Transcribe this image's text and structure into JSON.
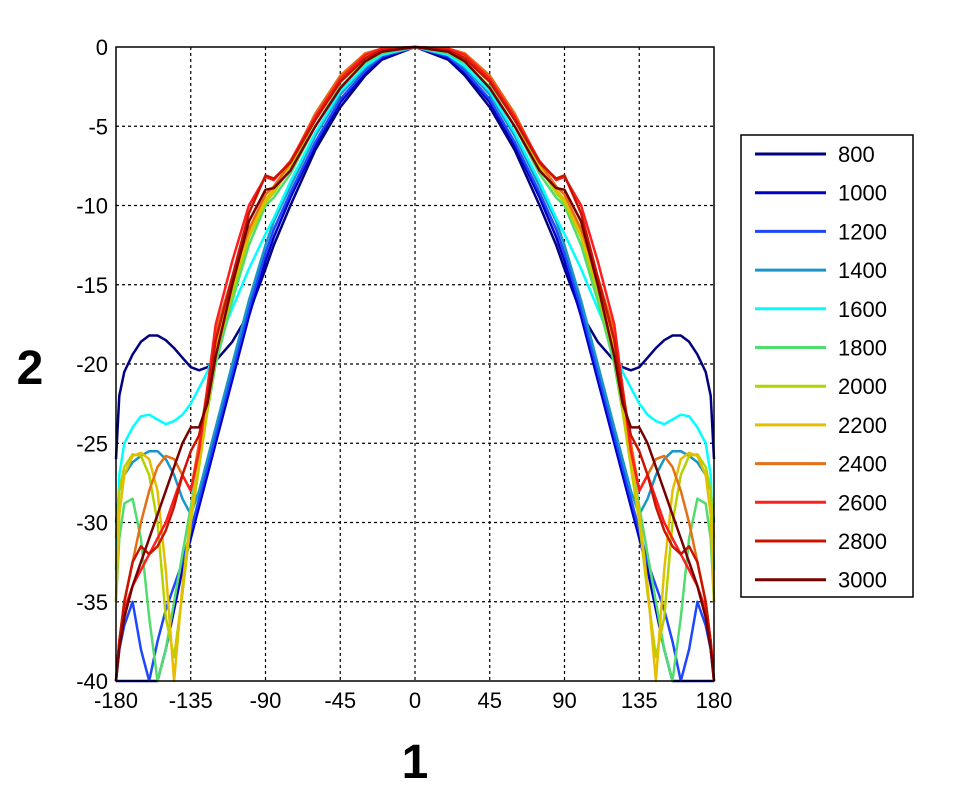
{
  "chart_data": {
    "type": "line",
    "title": "",
    "xlabel": "1",
    "ylabel": "2",
    "xlim": [
      -180,
      180
    ],
    "ylim": [
      -40,
      0
    ],
    "xticks": [
      -180,
      -135,
      -90,
      -45,
      0,
      45,
      90,
      135,
      180
    ],
    "yticks": [
      0,
      -5,
      -10,
      -15,
      -20,
      -25,
      -30,
      -35,
      -40
    ],
    "grid": true,
    "legend_position": "right",
    "x": [
      0,
      20,
      30,
      45,
      60,
      75,
      85,
      90,
      100,
      110,
      120,
      125,
      130,
      135,
      140,
      145,
      150,
      155,
      160,
      165,
      170,
      175,
      178,
      180
    ],
    "series": [
      {
        "name": "800",
        "color": "#000080",
        "values": [
          0,
          -0.8,
          -1.8,
          -3.8,
          -6.5,
          -10.0,
          -12.5,
          -14.0,
          -16.8,
          -18.6,
          -19.8,
          -20.2,
          -20.4,
          -20.2,
          -19.6,
          -19.0,
          -18.5,
          -18.2,
          -18.2,
          -18.6,
          -19.4,
          -20.5,
          -22.0,
          -26.0
        ]
      },
      {
        "name": "1000",
        "color": "#0000c8",
        "values": [
          0,
          -0.7,
          -1.6,
          -3.5,
          -6.2,
          -9.5,
          -12.0,
          -13.5,
          -17.0,
          -21.0,
          -25.0,
          -27.0,
          -29.0,
          -31.0,
          -33.0,
          -35.5,
          -38.0,
          -40.0,
          -40.0,
          -40.0,
          -40.0,
          -40.0,
          -40.0,
          -40.0
        ]
      },
      {
        "name": "1200",
        "color": "#1e46ff",
        "values": [
          0,
          -0.6,
          -1.5,
          -3.3,
          -6.0,
          -9.2,
          -11.5,
          -13.0,
          -16.5,
          -20.5,
          -24.5,
          -26.5,
          -28.5,
          -30.5,
          -32.5,
          -34.0,
          -35.5,
          -37.5,
          -40.0,
          -38.0,
          -35.0,
          -36.5,
          -38.0,
          -40.0
        ]
      },
      {
        "name": "1400",
        "color": "#1996c8",
        "values": [
          0,
          -0.5,
          -1.3,
          -3.0,
          -5.6,
          -8.8,
          -11.0,
          -12.5,
          -16.0,
          -20.0,
          -24.0,
          -26.0,
          -28.0,
          -29.5,
          -28.5,
          -27.0,
          -26.0,
          -25.5,
          -25.5,
          -25.8,
          -26.2,
          -27.0,
          -28.0,
          -30.0
        ]
      },
      {
        "name": "1600",
        "color": "#00ffff",
        "values": [
          0,
          -0.5,
          -1.2,
          -2.8,
          -5.4,
          -8.5,
          -10.8,
          -11.8,
          -14.0,
          -16.5,
          -19.0,
          -20.5,
          -21.5,
          -22.5,
          -23.2,
          -23.6,
          -23.8,
          -23.5,
          -23.2,
          -23.3,
          -24.0,
          -25.0,
          -27.0,
          -33.0
        ]
      },
      {
        "name": "1800",
        "color": "#50dc6e",
        "values": [
          0,
          -0.4,
          -1.0,
          -2.5,
          -5.0,
          -8.0,
          -9.5,
          -10.0,
          -12.5,
          -16.0,
          -20.0,
          -23.0,
          -26.0,
          -29.0,
          -32.0,
          -35.0,
          -38.0,
          -40.0,
          -36.0,
          -31.0,
          -28.5,
          -28.8,
          -31.0,
          -35.0
        ]
      },
      {
        "name": "2000",
        "color": "#b4d200",
        "values": [
          0,
          -0.3,
          -0.8,
          -2.2,
          -4.6,
          -7.6,
          -9.2,
          -9.8,
          -12.0,
          -15.5,
          -19.5,
          -23.0,
          -26.5,
          -30.0,
          -34.5,
          -38.5,
          -36.0,
          -30.0,
          -27.0,
          -25.8,
          -25.7,
          -26.5,
          -28.0,
          -31.0
        ]
      },
      {
        "name": "2200",
        "color": "#e6be00",
        "values": [
          0,
          -0.2,
          -0.6,
          -2.0,
          -4.4,
          -7.4,
          -9.0,
          -9.6,
          -11.8,
          -15.0,
          -19.0,
          -22.5,
          -26.0,
          -29.5,
          -34.0,
          -40.0,
          -33.0,
          -28.0,
          -26.0,
          -25.6,
          -25.8,
          -27.0,
          -29.5,
          -35.0
        ]
      },
      {
        "name": "2400",
        "color": "#e66e14",
        "values": [
          0,
          -0.1,
          -0.4,
          -1.8,
          -4.2,
          -7.3,
          -8.8,
          -9.3,
          -11.5,
          -14.5,
          -18.0,
          -21.5,
          -25.0,
          -28.0,
          -27.0,
          -26.0,
          -25.8,
          -26.5,
          -28.0,
          -30.0,
          -32.5,
          -35.0,
          -37.5,
          -40.0
        ]
      },
      {
        "name": "2600",
        "color": "#ff1e1e",
        "values": [
          0,
          -0.1,
          -0.5,
          -2.0,
          -4.4,
          -7.2,
          -8.4,
          -8.2,
          -10.0,
          -13.5,
          -17.5,
          -21.5,
          -25.5,
          -28.0,
          -27.0,
          -28.5,
          -30.0,
          -31.0,
          -32.0,
          -33.0,
          -34.0,
          -35.5,
          -37.5,
          -40.0
        ]
      },
      {
        "name": "2800",
        "color": "#c81400",
        "values": [
          0,
          -0.2,
          -0.7,
          -2.2,
          -4.6,
          -7.3,
          -8.3,
          -8.1,
          -10.5,
          -14.5,
          -18.5,
          -22.0,
          -24.5,
          -25.5,
          -27.0,
          -29.0,
          -30.5,
          -31.5,
          -32.0,
          -31.5,
          -32.5,
          -35.0,
          -37.5,
          -40.0
        ]
      },
      {
        "name": "3000",
        "color": "#780000",
        "values": [
          0,
          -0.3,
          -0.9,
          -2.6,
          -5.0,
          -7.8,
          -8.9,
          -9.0,
          -11.0,
          -15.0,
          -19.5,
          -22.5,
          -24.0,
          -24.0,
          -25.0,
          -26.5,
          -28.0,
          -29.5,
          -31.0,
          -32.5,
          -34.0,
          -36.0,
          -38.0,
          -40.0
        ]
      }
    ]
  }
}
